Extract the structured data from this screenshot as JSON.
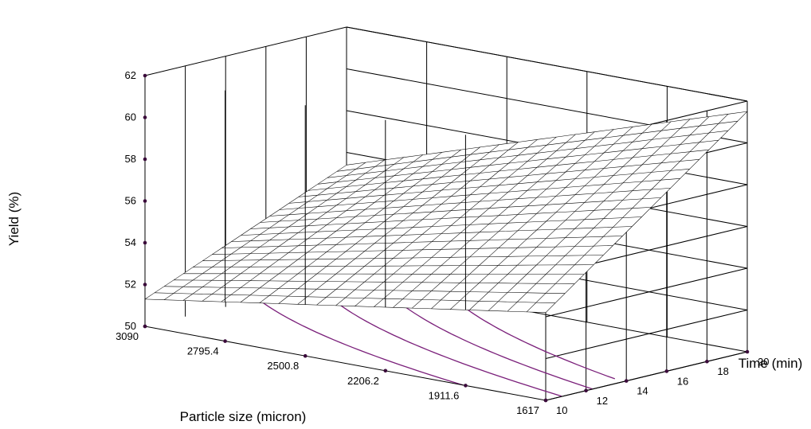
{
  "chart_data": {
    "type": "surface3d",
    "title": "",
    "xlabel": "Particle size (micron)",
    "ylabel": "Time (min)",
    "zlabel": "Yield (%)",
    "x_ticks": [
      "3090",
      "2795.4",
      "2500.8",
      "2206.2",
      "1911.6",
      "1617"
    ],
    "y_ticks": [
      "10",
      "12",
      "14",
      "16",
      "18",
      "20"
    ],
    "z_ticks": [
      "50",
      "52",
      "54",
      "56",
      "58",
      "60",
      "62"
    ],
    "xlim": [
      3090,
      1617
    ],
    "ylim": [
      10,
      20
    ],
    "zlim": [
      50,
      62
    ],
    "surface_corners": [
      {
        "particle_size": 3090,
        "time": 10,
        "yield": 51.3
      },
      {
        "particle_size": 1617,
        "time": 10,
        "yield": 54.2
      },
      {
        "particle_size": 3090,
        "time": 20,
        "yield": 55.4
      },
      {
        "particle_size": 1617,
        "time": 20,
        "yield": 61.5
      }
    ],
    "grid_resolution": 21,
    "contour_color": "#7a1f7a",
    "surface_color": "#ffffff",
    "line_color": "#000000"
  }
}
